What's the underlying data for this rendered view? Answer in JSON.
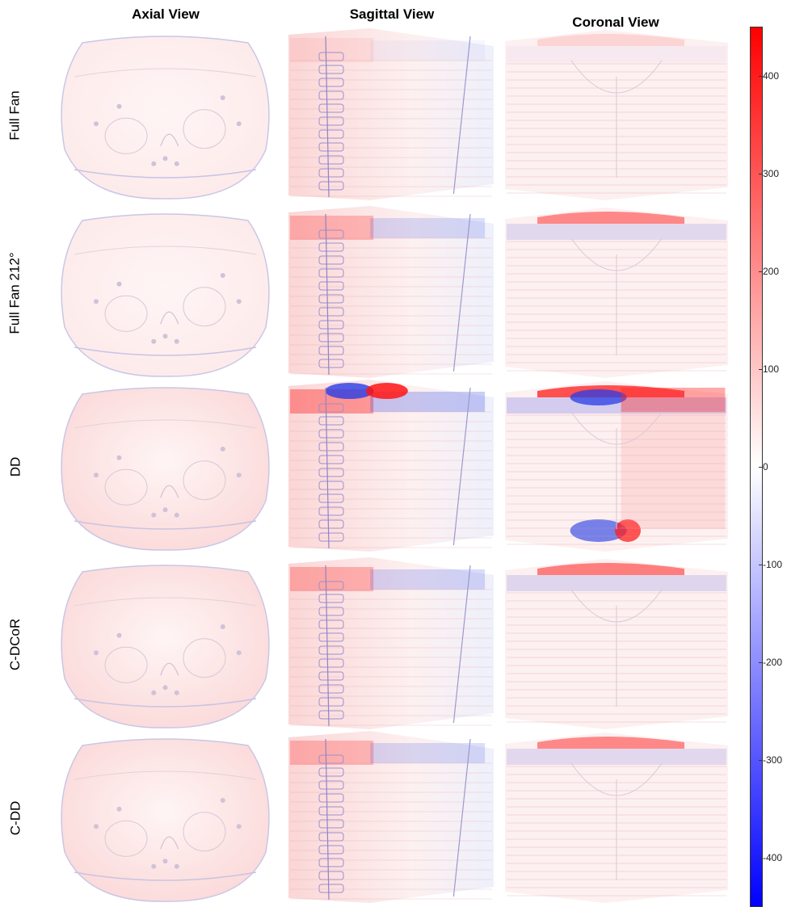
{
  "columns": [
    "Axial View",
    "Sagittal View",
    "Coronal View"
  ],
  "rows": [
    "Full Fan",
    "Full Fan 212°",
    "DD",
    "C-DCoR",
    "C-DD"
  ],
  "colorbar": {
    "ticks": [
      "400",
      "300",
      "200",
      "100",
      "0",
      "-100",
      "-200",
      "-300",
      "-400"
    ],
    "tick_values": [
      400,
      300,
      200,
      100,
      0,
      -100,
      -200,
      -300,
      -400
    ],
    "range": [
      -450,
      450
    ],
    "colors": {
      "max": "#ff0000",
      "mid": "#ffffff",
      "min": "#0000ff"
    }
  }
}
